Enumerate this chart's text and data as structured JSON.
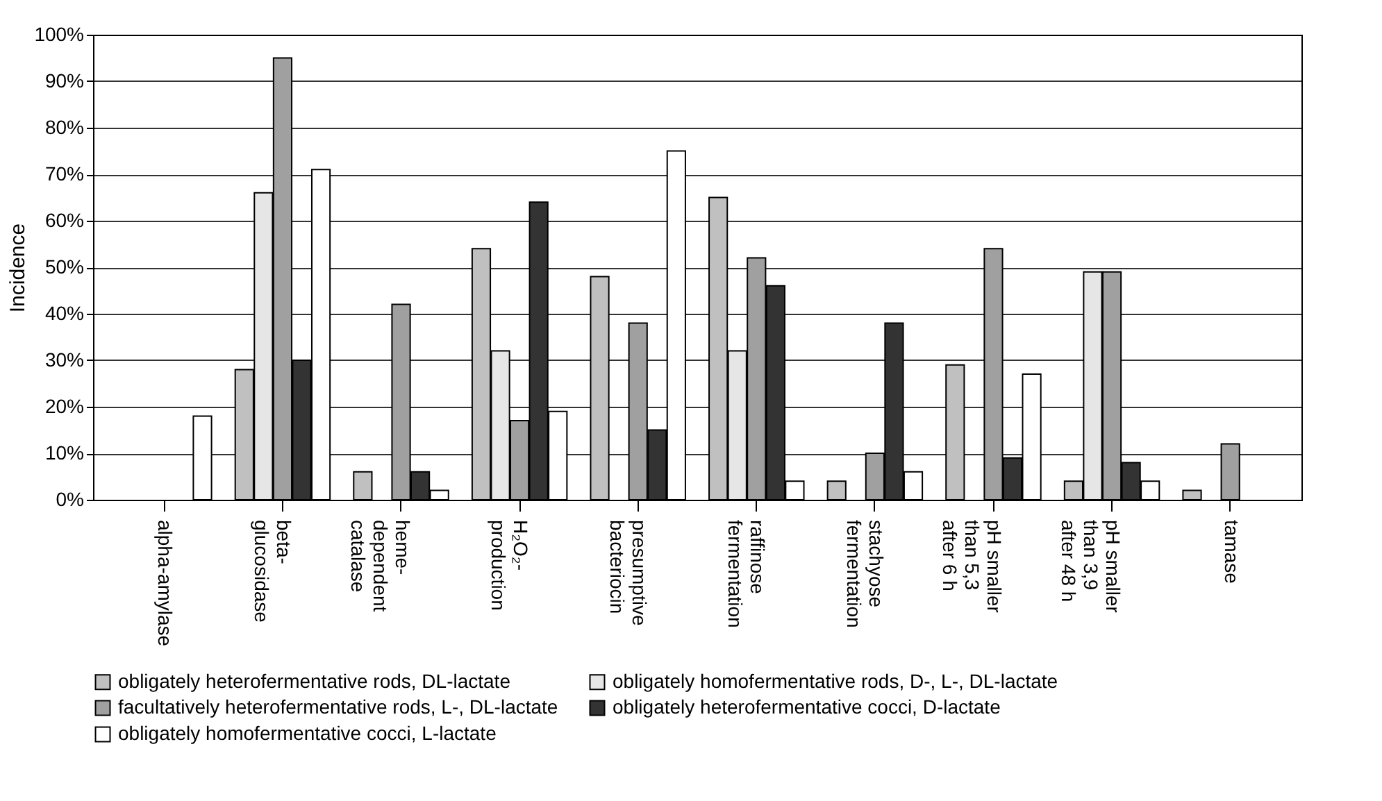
{
  "chart_data": {
    "type": "bar",
    "ylabel": "Incidence",
    "categories": [
      "alpha-amylase",
      "beta-glucosidase",
      "heme-dependent catalase",
      "H₂O₂-production",
      "presumptive bacteriocin",
      "raffinose fermentation",
      "stachyose fermentation",
      "pH smaller than 5,3 after 6 h",
      "pH smaller than 3,9 after 48 h",
      "tamase"
    ],
    "series": [
      {
        "name": "obligately heterofermentative rods, DL-lactate",
        "color": "#c0c0c0",
        "values": [
          0,
          28,
          6,
          54,
          48,
          65,
          4,
          29,
          4,
          2
        ]
      },
      {
        "name": "obligately homofermentative rods, D-, L-, DL-lactate",
        "color": "#e6e6e6",
        "values": [
          0,
          66,
          0,
          32,
          0,
          32,
          0,
          0,
          49,
          0
        ]
      },
      {
        "name": "facultatively heterofermentative rods, L-, DL-lactate",
        "color": "#a0a0a0",
        "values": [
          0,
          95,
          42,
          17,
          38,
          52,
          10,
          54,
          49,
          12
        ]
      },
      {
        "name": "obligately heterofermentative cocci, D-lactate",
        "color": "#333333",
        "values": [
          0,
          30,
          6,
          64,
          15,
          46,
          38,
          9,
          8,
          0
        ]
      },
      {
        "name": "obligately homofermentative cocci, L-lactate",
        "color": "#ffffff",
        "values": [
          18,
          71,
          2,
          19,
          75,
          4,
          6,
          27,
          4,
          0
        ]
      }
    ],
    "ylim": [
      0,
      100
    ],
    "yticks": [
      {
        "value": 0,
        "label": "0%"
      },
      {
        "value": 10,
        "label": "10%"
      },
      {
        "value": 20,
        "label": "20%"
      },
      {
        "value": 30,
        "label": "30%"
      },
      {
        "value": 40,
        "label": "40%"
      },
      {
        "value": 50,
        "label": "50%"
      },
      {
        "value": 60,
        "label": "60%"
      },
      {
        "value": 70,
        "label": "70%"
      },
      {
        "value": 80,
        "label": "80%"
      },
      {
        "value": 90,
        "label": "90%"
      },
      {
        "value": 100,
        "label": "100%"
      }
    ],
    "grid": "y",
    "legend": "bottom"
  }
}
